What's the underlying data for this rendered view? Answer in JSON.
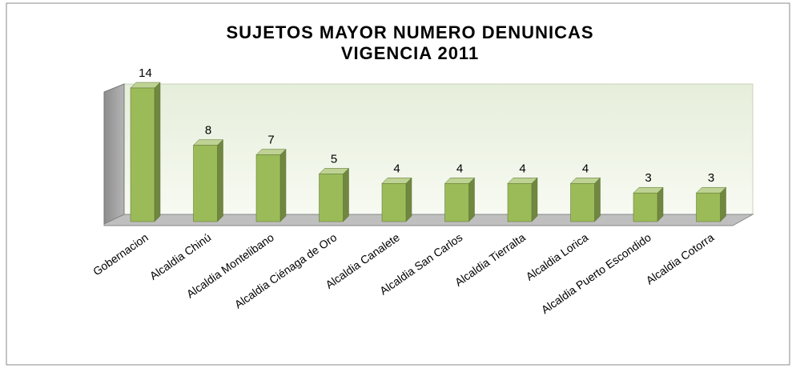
{
  "chart_data": {
    "type": "bar3d",
    "title": "SUJETOS MAYOR NUMERO DENUNICAS",
    "subtitle": "VIGENCIA 2011",
    "categories": [
      "Gobernacion",
      "Alcaldia Chinú",
      "Alcaldia Montelibano",
      "Alcaldia Ciénaga de Oro",
      "Alcaldia Canalete",
      "Alcaldia San Carlos",
      "Alcaldia Tierralta",
      "Alcaldia Lorica",
      "Alcaldia Puerto Escondido",
      "Alcaldia Cotorra"
    ],
    "values": [
      14,
      8,
      7,
      5,
      4,
      4,
      4,
      4,
      3,
      3
    ],
    "color": "#9bbb59"
  }
}
